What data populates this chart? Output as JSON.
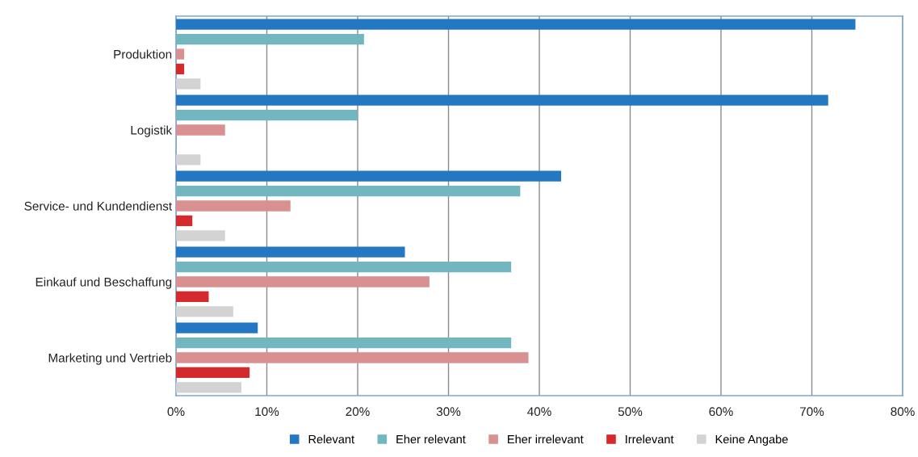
{
  "chart_data": {
    "type": "bar",
    "orientation": "horizontal",
    "categories": [
      "Produktion",
      "Logistik",
      "Service- und Kundendienst",
      "Einkauf und Beschaffung",
      "Marketing und Vertrieb"
    ],
    "series": [
      {
        "name": "Relevant",
        "color": "#2477c2",
        "values": [
          74.8,
          71.8,
          42.4,
          25.2,
          9.0
        ]
      },
      {
        "name": "Eher relevant",
        "color": "#72b6bf",
        "values": [
          20.7,
          20.0,
          37.9,
          36.9,
          36.9
        ]
      },
      {
        "name": "Eher irrelevant",
        "color": "#d99090",
        "values": [
          0.9,
          5.4,
          12.6,
          27.9,
          38.8
        ]
      },
      {
        "name": "Irrelevant",
        "color": "#d42a2e",
        "values": [
          0.9,
          0,
          1.8,
          3.6,
          8.1
        ]
      },
      {
        "name": "Keine Angabe",
        "color": "#d3d3d3",
        "values": [
          2.7,
          2.7,
          5.4,
          6.3,
          7.2
        ]
      }
    ],
    "xlim": [
      0,
      80
    ],
    "xticks": [
      {
        "value": 0,
        "label": "0%"
      },
      {
        "value": 10,
        "label": "10%"
      },
      {
        "value": 20,
        "label": "20%"
      },
      {
        "value": 30,
        "label": "30%"
      },
      {
        "value": 40,
        "label": "40%"
      },
      {
        "value": 50,
        "label": "50%"
      },
      {
        "value": 60,
        "label": "60%"
      },
      {
        "value": 70,
        "label": "70%"
      },
      {
        "value": 80,
        "label": "80%"
      }
    ],
    "grid": "x",
    "legend": "bottom"
  }
}
